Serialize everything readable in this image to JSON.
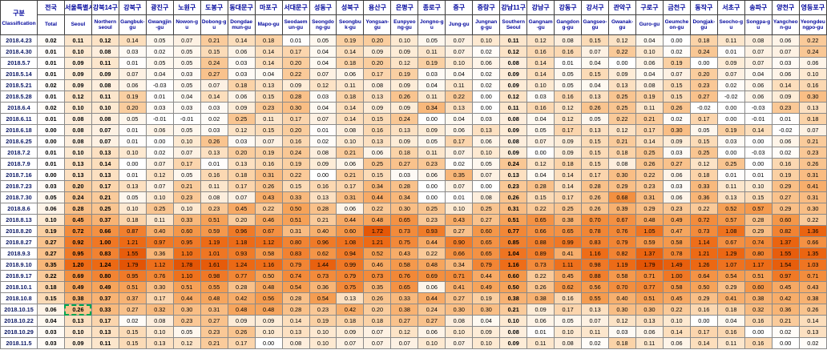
{
  "header": {
    "corner_ko": "구분",
    "corner_en": "Classification"
  },
  "selection": {
    "row_index": 24,
    "col_index": 1,
    "color": "#00a550"
  },
  "style": {
    "header_text_color": "#00069c",
    "negative_bg": "#FFFFFF",
    "heat_stops": [
      [
        0,
        "#FFFFFF"
      ],
      [
        0.05,
        "#FEF7EE"
      ],
      [
        0.12,
        "#FCE3C6"
      ],
      [
        0.2,
        "#FACD9E"
      ],
      [
        0.35,
        "#F8B678"
      ],
      [
        0.55,
        "#F59C4F"
      ],
      [
        0.8,
        "#F28433"
      ],
      [
        1.2,
        "#ED6A15"
      ],
      [
        1.8,
        "#E35405"
      ]
    ]
  },
  "chart_data": {
    "type": "heatmap",
    "value_format": "0.00",
    "bold_columns": [
      0,
      1,
      2,
      17
    ],
    "columns": [
      {
        "ko": "전국",
        "en": "Total"
      },
      {
        "ko": "서울특별시",
        "en": "Seoul"
      },
      {
        "ko": "강북14구",
        "en": "Northern seoul"
      },
      {
        "ko": "강북구",
        "en": "Gangbuk-gu"
      },
      {
        "ko": "광진구",
        "en": "Gwangjin-gu"
      },
      {
        "ko": "노원구",
        "en": "Nowon-gu"
      },
      {
        "ko": "도봉구",
        "en": "Dobong-gu"
      },
      {
        "ko": "동대문구",
        "en": "Dongdaemun-gu"
      },
      {
        "ko": "마포구",
        "en": "Mapo-gu"
      },
      {
        "ko": "서대문구",
        "en": "Seodaemun-gu"
      },
      {
        "ko": "성동구",
        "en": "Seongdong-gu"
      },
      {
        "ko": "성북구",
        "en": "Seongbuk-gu"
      },
      {
        "ko": "용산구",
        "en": "Yongsan-gu"
      },
      {
        "ko": "은평구",
        "en": "Eunpyeong-gu"
      },
      {
        "ko": "종로구",
        "en": "Jongno-gu"
      },
      {
        "ko": "중구",
        "en": "Jung-gu"
      },
      {
        "ko": "중랑구",
        "en": "Jungnang-gu"
      },
      {
        "ko": "강남11구",
        "en": "Southern Seoul"
      },
      {
        "ko": "강남구",
        "en": "Gangnam-gu"
      },
      {
        "ko": "강동구",
        "en": "Gangdong-gu"
      },
      {
        "ko": "강서구",
        "en": "Gangseo-gu"
      },
      {
        "ko": "관악구",
        "en": "Gwanak-gu"
      },
      {
        "ko": "구로구",
        "en": "Guro-gu"
      },
      {
        "ko": "금천구",
        "en": "Geumcheon-gu"
      },
      {
        "ko": "동작구",
        "en": "Dongjak-gu"
      },
      {
        "ko": "서초구",
        "en": "Seocho-gu"
      },
      {
        "ko": "송파구",
        "en": "Songpa-gu"
      },
      {
        "ko": "양천구",
        "en": "Yangcheon-gu"
      },
      {
        "ko": "영등포구",
        "en": "Yeongdeungpo-gu"
      }
    ],
    "rows": [
      "2018.4.23",
      "2018.4.30",
      "2018.5.7",
      "2018.5.14",
      "2018.5.21",
      "2018.5.28",
      "2018.6.4",
      "2018.6.11",
      "2018.6.18",
      "2018.6.25",
      "2018.7.2",
      "2018.7.9",
      "2018.7.16",
      "2018.7.23",
      "2018.7.30",
      "2018.8.6",
      "2018.8.13",
      "2018.8.20",
      "2018.8.27",
      "2018.9.3",
      "2018.9.10",
      "2018.9.17",
      "2018.10.1",
      "2018.10.8",
      "2018.10.15",
      "2018.10.22",
      "2018.10.29",
      "2018.11.5"
    ],
    "values": [
      [
        0.02,
        0.11,
        0.12,
        0.14,
        0.05,
        0.07,
        0.21,
        0.14,
        0.18,
        0.01,
        0.05,
        0.19,
        0.2,
        0.1,
        0.05,
        0.07,
        0.1,
        0.11,
        0.12,
        0.08,
        0.15,
        0.12,
        0.04,
        0.0,
        0.18,
        0.11,
        0.08,
        0.06,
        0.22
      ],
      [
        0.01,
        0.1,
        0.08,
        0.03,
        0.02,
        0.05,
        0.15,
        0.06,
        0.14,
        0.17,
        0.04,
        0.14,
        0.09,
        0.09,
        0.11,
        0.07,
        0.02,
        0.12,
        0.16,
        0.16,
        0.07,
        0.22,
        0.1,
        0.02,
        0.24,
        0.01,
        0.07,
        0.07,
        0.24
      ],
      [
        0.01,
        0.09,
        0.11,
        0.01,
        0.05,
        0.05,
        0.24,
        0.03,
        0.14,
        0.2,
        0.04,
        0.18,
        0.2,
        0.12,
        0.19,
        0.1,
        0.06,
        0.08,
        0.14,
        0.01,
        0.04,
        0.0,
        0.06,
        0.19,
        0.0,
        0.09,
        0.07,
        0.03,
        0.06
      ],
      [
        0.01,
        0.09,
        0.09,
        0.07,
        0.04,
        0.03,
        0.27,
        0.03,
        0.04,
        0.22,
        0.07,
        0.06,
        0.17,
        0.19,
        0.03,
        0.04,
        0.02,
        0.09,
        0.14,
        0.05,
        0.15,
        0.09,
        0.04,
        0.07,
        0.2,
        0.07,
        0.04,
        0.06,
        0.1
      ],
      [
        0.02,
        0.09,
        0.08,
        0.06,
        -0.03,
        0.05,
        0.07,
        0.18,
        0.13,
        0.09,
        0.12,
        0.11,
        0.08,
        0.09,
        0.04,
        0.11,
        0.02,
        0.09,
        0.1,
        0.05,
        0.04,
        0.13,
        0.08,
        0.15,
        0.23,
        0.02,
        0.06,
        0.14,
        0.16
      ],
      [
        0.01,
        0.12,
        0.11,
        0.19,
        0.01,
        0.04,
        0.14,
        0.06,
        0.15,
        0.28,
        0.03,
        0.18,
        0.13,
        0.26,
        0.11,
        0.22,
        0.0,
        0.12,
        0.03,
        0.16,
        0.13,
        0.25,
        0.19,
        0.15,
        0.27,
        -0.02,
        0.06,
        0.09,
        0.3
      ],
      [
        0.02,
        0.1,
        0.1,
        0.2,
        0.03,
        0.03,
        0.03,
        0.09,
        0.23,
        0.3,
        0.04,
        0.14,
        0.09,
        0.09,
        0.34,
        0.13,
        0.0,
        0.11,
        0.16,
        0.12,
        0.26,
        0.25,
        0.11,
        0.26,
        -0.02,
        0.0,
        -0.03,
        0.23,
        0.13
      ],
      [
        0.01,
        0.08,
        0.08,
        0.05,
        -0.01,
        -0.01,
        0.02,
        0.25,
        0.11,
        0.17,
        0.07,
        0.14,
        0.15,
        0.24,
        0.0,
        0.04,
        0.03,
        0.08,
        0.04,
        0.12,
        0.05,
        0.22,
        0.21,
        0.02,
        0.17,
        0.0,
        -0.01,
        0.01,
        0.18
      ],
      [
        0.0,
        0.08,
        0.07,
        0.01,
        0.06,
        0.05,
        0.03,
        0.12,
        0.15,
        0.2,
        0.01,
        0.08,
        0.16,
        0.13,
        0.09,
        0.06,
        0.13,
        0.09,
        0.05,
        0.17,
        0.13,
        0.12,
        0.17,
        0.3,
        0.05,
        0.19,
        0.14,
        -0.02,
        0.07
      ],
      [
        0.0,
        0.08,
        0.07,
        0.01,
        0.0,
        0.1,
        0.26,
        0.03,
        0.07,
        0.16,
        0.02,
        0.1,
        0.13,
        0.09,
        0.05,
        0.17,
        0.06,
        0.08,
        0.07,
        0.09,
        0.15,
        0.21,
        0.14,
        0.09,
        0.15,
        0.03,
        0.0,
        0.06,
        0.21
      ],
      [
        0.01,
        0.1,
        0.13,
        0.1,
        0.02,
        0.07,
        0.13,
        0.2,
        0.19,
        0.24,
        0.08,
        0.21,
        0.06,
        0.18,
        0.11,
        0.07,
        0.1,
        0.09,
        0.0,
        0.09,
        0.15,
        0.18,
        0.25,
        0.03,
        0.25,
        0.0,
        -0.03,
        0.02,
        0.23
      ],
      [
        0.01,
        0.13,
        0.14,
        0.0,
        0.07,
        0.17,
        0.01,
        0.13,
        0.16,
        0.19,
        0.09,
        0.06,
        0.25,
        0.27,
        0.23,
        0.02,
        0.05,
        0.24,
        0.12,
        0.18,
        0.15,
        0.08,
        0.26,
        0.27,
        0.12,
        0.25,
        0.0,
        0.16,
        0.26
      ],
      [
        0.0,
        0.13,
        0.13,
        0.01,
        0.12,
        0.05,
        0.16,
        0.18,
        0.31,
        0.22,
        0.0,
        0.21,
        0.15,
        0.03,
        0.06,
        0.35,
        0.07,
        0.13,
        0.04,
        0.14,
        0.17,
        0.3,
        0.22,
        0.06,
        0.18,
        0.01,
        0.01,
        0.19,
        0.31
      ],
      [
        0.03,
        0.2,
        0.17,
        0.13,
        0.07,
        0.21,
        0.11,
        0.17,
        0.26,
        0.15,
        0.16,
        0.17,
        0.34,
        0.28,
        0.0,
        0.07,
        0.0,
        0.23,
        0.28,
        0.14,
        0.28,
        0.29,
        0.23,
        0.03,
        0.33,
        0.11,
        0.1,
        0.29,
        0.41
      ],
      [
        0.05,
        0.24,
        0.21,
        0.05,
        0.1,
        0.23,
        0.08,
        0.07,
        0.43,
        0.33,
        0.13,
        0.31,
        0.44,
        0.34,
        0.0,
        0.01,
        0.08,
        0.26,
        0.15,
        0.17,
        0.26,
        0.68,
        0.31,
        0.06,
        0.36,
        0.13,
        0.15,
        0.27,
        0.31
      ],
      [
        0.06,
        0.28,
        0.25,
        0.1,
        0.25,
        0.1,
        0.23,
        0.45,
        0.22,
        0.5,
        0.28,
        0.06,
        0.22,
        0.3,
        0.25,
        0.1,
        0.25,
        0.31,
        0.22,
        0.25,
        0.26,
        0.39,
        0.29,
        0.23,
        0.22,
        0.52,
        0.57,
        0.29,
        0.3
      ],
      [
        0.1,
        0.45,
        0.37,
        0.18,
        0.11,
        0.33,
        0.51,
        0.2,
        0.46,
        0.51,
        0.21,
        0.44,
        0.48,
        0.65,
        0.23,
        0.43,
        0.27,
        0.51,
        0.65,
        0.38,
        0.7,
        0.67,
        0.48,
        0.49,
        0.72,
        0.57,
        0.28,
        0.6,
        0.22
      ],
      [
        0.19,
        0.72,
        0.66,
        0.87,
        0.4,
        0.6,
        0.59,
        0.96,
        0.67,
        0.31,
        0.4,
        0.6,
        1.72,
        0.73,
        0.93,
        0.27,
        0.6,
        0.77,
        0.66,
        0.65,
        0.78,
        0.76,
        1.05,
        0.47,
        0.73,
        1.08,
        0.29,
        0.82,
        1.36
      ],
      [
        0.27,
        0.92,
        1.0,
        1.21,
        0.97,
        0.95,
        1.19,
        1.18,
        1.12,
        0.8,
        0.96,
        1.08,
        1.21,
        0.75,
        0.44,
        0.9,
        0.65,
        0.85,
        0.88,
        0.99,
        0.83,
        0.79,
        0.59,
        0.58,
        1.14,
        0.67,
        0.74,
        1.37,
        0.66
      ],
      [
        0.27,
        0.95,
        0.83,
        1.55,
        0.36,
        1.1,
        1.01,
        0.93,
        0.58,
        0.83,
        0.62,
        0.94,
        0.52,
        0.43,
        0.22,
        0.66,
        0.65,
        1.04,
        0.89,
        0.41,
        1.16,
        0.82,
        1.37,
        0.78,
        1.21,
        1.29,
        0.8,
        1.55,
        1.35
      ],
      [
        0.35,
        1.2,
        1.24,
        1.79,
        1.12,
        1.78,
        1.61,
        1.24,
        1.16,
        0.79,
        1.44,
        0.99,
        0.46,
        0.58,
        0.48,
        0.34,
        0.79,
        1.16,
        0.73,
        1.11,
        0.98,
        1.19,
        1.79,
        1.49,
        1.26,
        1.07,
        1.17,
        1.54,
        1.03
      ],
      [
        0.22,
        0.69,
        0.8,
        0.95,
        0.76,
        1.1,
        0.98,
        0.77,
        0.5,
        0.74,
        0.73,
        0.79,
        0.73,
        0.76,
        0.69,
        0.71,
        0.44,
        0.6,
        0.22,
        0.45,
        0.88,
        0.58,
        0.71,
        1.0,
        0.64,
        0.54,
        0.51,
        0.97,
        0.71
      ],
      [
        0.18,
        0.49,
        0.49,
        0.51,
        0.3,
        0.51,
        0.55,
        0.28,
        0.48,
        0.54,
        0.36,
        0.75,
        0.35,
        0.65,
        0.06,
        0.41,
        0.49,
        0.5,
        0.26,
        0.62,
        0.56,
        0.7,
        0.77,
        0.58,
        0.5,
        0.29,
        0.6,
        0.45,
        0.43
      ],
      [
        0.15,
        0.38,
        0.37,
        0.37,
        0.17,
        0.44,
        0.48,
        0.42,
        0.56,
        0.28,
        0.54,
        0.13,
        0.26,
        0.33,
        0.44,
        0.27,
        0.19,
        0.38,
        0.38,
        0.16,
        0.55,
        0.4,
        0.51,
        0.45,
        0.29,
        0.41,
        0.38,
        0.42,
        0.38
      ],
      [
        0.06,
        0.26,
        0.33,
        0.27,
        0.32,
        0.3,
        0.31,
        0.48,
        0.48,
        0.28,
        0.23,
        0.42,
        0.2,
        0.38,
        0.24,
        0.3,
        0.3,
        0.21,
        0.09,
        0.17,
        0.13,
        0.3,
        0.3,
        0.22,
        0.16,
        0.18,
        0.32,
        0.36,
        0.26
      ],
      [
        0.04,
        0.13,
        0.17,
        0.02,
        0.08,
        0.23,
        0.27,
        0.09,
        0.09,
        0.14,
        0.19,
        0.18,
        0.18,
        0.27,
        0.27,
        0.08,
        0.04,
        0.1,
        0.06,
        0.05,
        0.07,
        0.12,
        0.13,
        0.1,
        0.0,
        0.04,
        0.16,
        0.21,
        0.14
      ],
      [
        0.03,
        0.1,
        0.13,
        0.15,
        0.1,
        0.05,
        0.23,
        0.26,
        0.1,
        0.13,
        0.1,
        0.09,
        0.07,
        0.12,
        0.06,
        0.1,
        0.09,
        0.08,
        0.01,
        0.1,
        0.11,
        0.03,
        0.06,
        0.14,
        0.17,
        0.16,
        0.0,
        0.02,
        0.13
      ],
      [
        0.03,
        0.09,
        0.11,
        0.15,
        0.13,
        0.12,
        0.21,
        0.17,
        0.0,
        0.08,
        0.1,
        0.07,
        0.07,
        0.07,
        0.1,
        0.07,
        0.1,
        0.09,
        0.11,
        0.08,
        0.02,
        0.18,
        0.11,
        0.06,
        0.14,
        0.11,
        0.16,
        0.0,
        0.02
      ]
    ]
  }
}
